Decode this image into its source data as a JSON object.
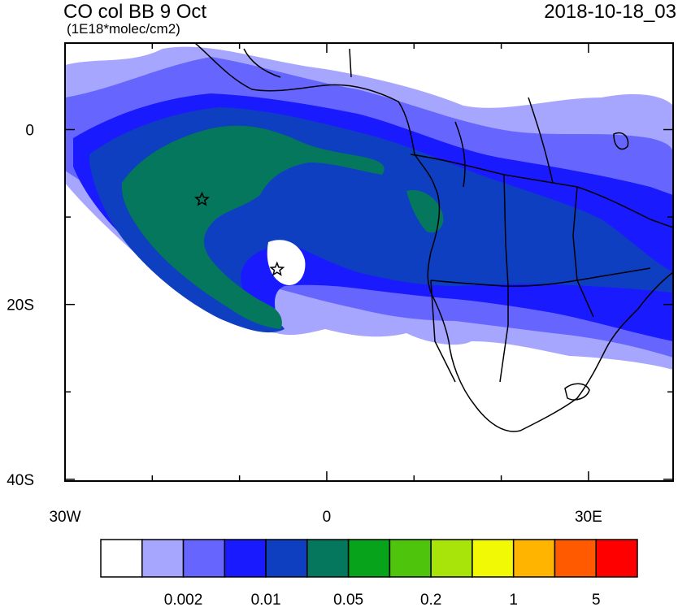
{
  "header": {
    "title": "CO col BB 9 Oct",
    "subtitle": "(1E18*molec/cm2)",
    "datetime": "2018-10-18_03"
  },
  "map": {
    "lat_ticks": [
      {
        "value": 0,
        "label": "0"
      },
      {
        "value": -20,
        "label": "20S"
      },
      {
        "value": -40,
        "label": "40S"
      }
    ],
    "lon_ticks": [
      {
        "value": -30,
        "label": "30W"
      },
      {
        "value": 0,
        "label": "0"
      },
      {
        "value": 30,
        "label": "30E"
      }
    ],
    "markers": [
      {
        "name": "star-marker-1",
        "lon": -14.3,
        "lat": -8.0
      },
      {
        "name": "star-marker-2",
        "lon": -5.7,
        "lat": -16.0
      }
    ]
  },
  "colorbar": {
    "colors": [
      "#ffffff",
      "#a6a6ff",
      "#6666ff",
      "#1a1aff",
      "#0f3fc1",
      "#05775c",
      "#07a31b",
      "#4ec40c",
      "#a8e40a",
      "#f1f905",
      "#ffb400",
      "#ff5a00",
      "#ff0000"
    ],
    "labels": [
      {
        "boundary": 2,
        "text": "0.002"
      },
      {
        "boundary": 4,
        "text": "0.01"
      },
      {
        "boundary": 6,
        "text": "0.05"
      },
      {
        "boundary": 8,
        "text": "0.2"
      },
      {
        "boundary": 10,
        "text": "1"
      },
      {
        "boundary": 12,
        "text": "5"
      }
    ]
  }
}
